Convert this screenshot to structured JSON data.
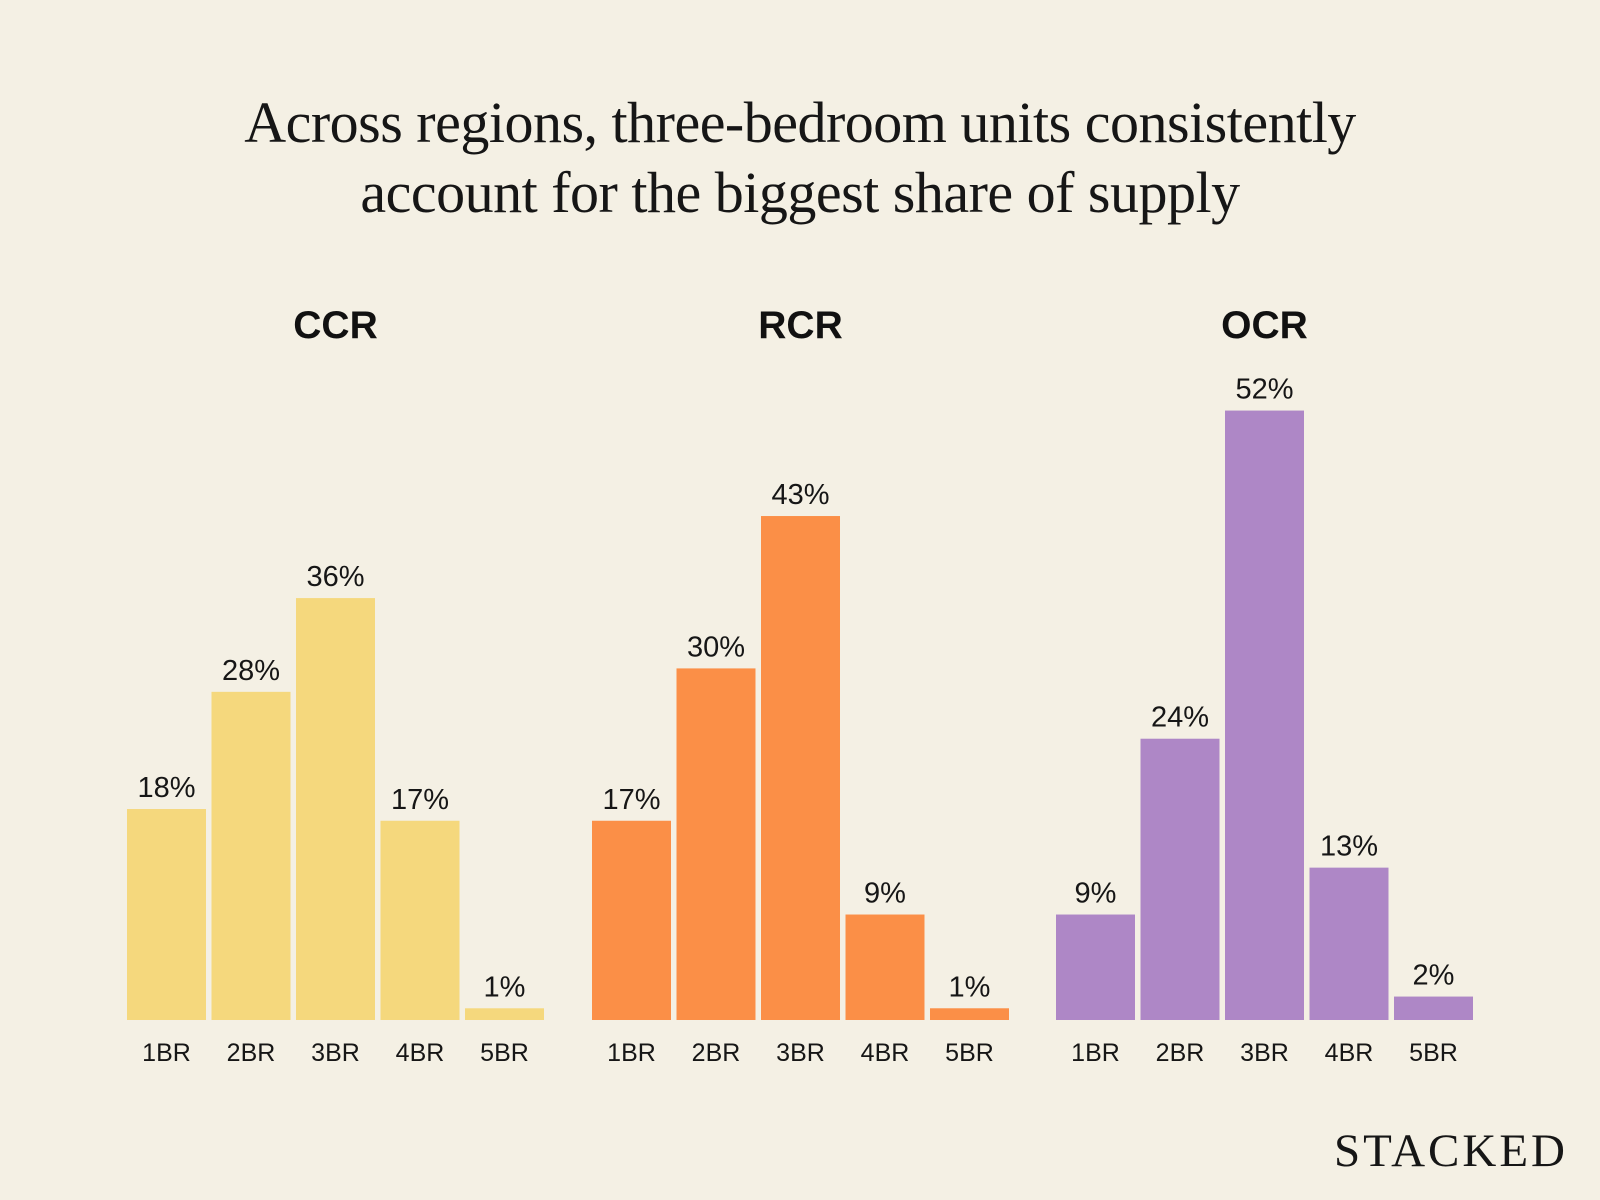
{
  "chart_data": [
    {
      "type": "bar",
      "title": "CCR",
      "categories": [
        "1BR",
        "2BR",
        "3BR",
        "4BR",
        "5BR"
      ],
      "values": [
        18,
        28,
        36,
        17,
        1
      ],
      "labels": [
        "18%",
        "28%",
        "36%",
        "17%",
        "1%"
      ],
      "color": "#f5d87d",
      "ylim": [
        0,
        52
      ],
      "grid": false
    },
    {
      "type": "bar",
      "title": "RCR",
      "categories": [
        "1BR",
        "2BR",
        "3BR",
        "4BR",
        "5BR"
      ],
      "values": [
        17,
        30,
        43,
        9,
        1
      ],
      "labels": [
        "17%",
        "30%",
        "43%",
        "9%",
        "1%"
      ],
      "color": "#fb8f47",
      "ylim": [
        0,
        52
      ],
      "grid": false
    },
    {
      "type": "bar",
      "title": "OCR",
      "categories": [
        "1BR",
        "2BR",
        "3BR",
        "4BR",
        "5BR"
      ],
      "values": [
        9,
        24,
        52,
        13,
        2
      ],
      "labels": [
        "9%",
        "24%",
        "52%",
        "13%",
        "2%"
      ],
      "color": "#ae87c6",
      "ylim": [
        0,
        52
      ],
      "grid": false
    }
  ],
  "title_lines": [
    "Across regions, three-bedroom units consistently",
    "account for the biggest share of supply"
  ],
  "logo": "STACKED",
  "colors": {
    "background": "#f4f0e4",
    "text": "#161616"
  }
}
